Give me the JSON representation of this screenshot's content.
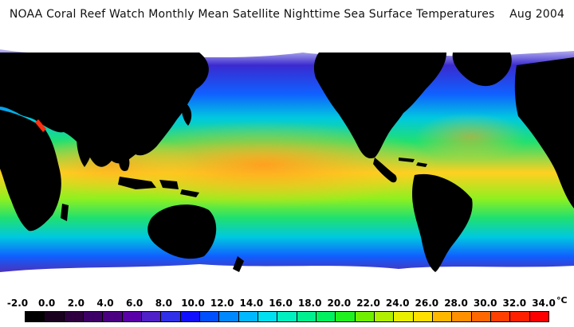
{
  "title": "NOAA Coral Reef Watch Monthly Mean Satellite Nighttime Sea Surface Temperatures    Aug 2004",
  "colorbar": {
    "unit": "°C",
    "tick_labels": [
      "-2.0",
      "0.0",
      "2.0",
      "4.0",
      "6.0",
      "8.0",
      "10.0",
      "12.0",
      "14.0",
      "16.0",
      "18.0",
      "20.0",
      "22.0",
      "24.0",
      "26.0",
      "28.0",
      "30.0",
      "32.0",
      "34.0"
    ],
    "colors": [
      "#000000",
      "#1a001f",
      "#2e0040",
      "#3d0066",
      "#4b0082",
      "#5a00a8",
      "#5020c8",
      "#3030e8",
      "#1010ff",
      "#0050ff",
      "#0088ff",
      "#00b8ff",
      "#00e0f0",
      "#00f0c0",
      "#00f090",
      "#00f060",
      "#20f020",
      "#70f000",
      "#b0f000",
      "#e8f000",
      "#ffe000",
      "#ffb800",
      "#ff9000",
      "#ff6800",
      "#ff4000",
      "#ff2000",
      "#ff0000"
    ]
  },
  "map_colors": {
    "land": "#000000",
    "ice": "#ffffff",
    "polar_south": "#6a1a9a",
    "polar_north": "#3a2ad0",
    "cool": "#1060ff",
    "cool_mid": "#00c8e0",
    "mild": "#20e070",
    "warm": "#8ef020",
    "hot": "#ffd020",
    "hottest": "#ffa020",
    "red_sea": "#ff3010"
  }
}
